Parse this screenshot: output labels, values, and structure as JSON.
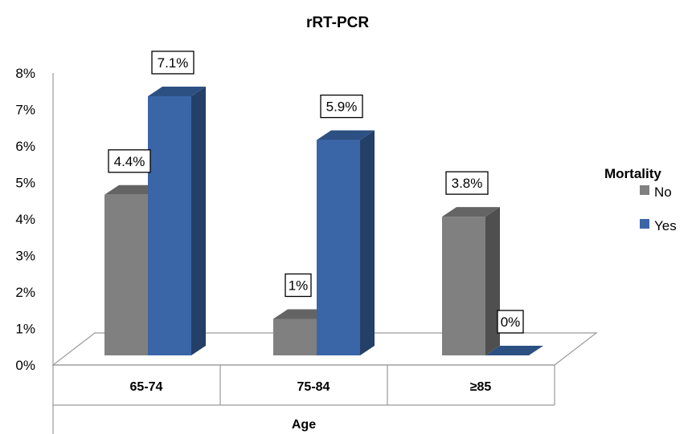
{
  "chart_data": {
    "type": "bar",
    "title": "rRT-PCR",
    "xlabel": "Age",
    "ylabel": "",
    "categories": [
      "65-74",
      "75-84",
      "≥85"
    ],
    "ylim": [
      0,
      8
    ],
    "y_ticks": [
      "0%",
      "1%",
      "2%",
      "3%",
      "4%",
      "5%",
      "6%",
      "7%",
      "8%"
    ],
    "legend_title": "Mortality",
    "legend_position": "right",
    "grid": false,
    "series": [
      {
        "name": "No",
        "values": [
          4.4,
          1,
          3.8
        ],
        "labels": [
          "4.4%",
          "1%",
          "3.8%"
        ],
        "color": "#808080"
      },
      {
        "name": "Yes",
        "values": [
          7.1,
          5.9,
          0
        ],
        "labels": [
          "7.1%",
          "5.9%",
          "0%"
        ],
        "color": "#3a66a8"
      }
    ]
  }
}
